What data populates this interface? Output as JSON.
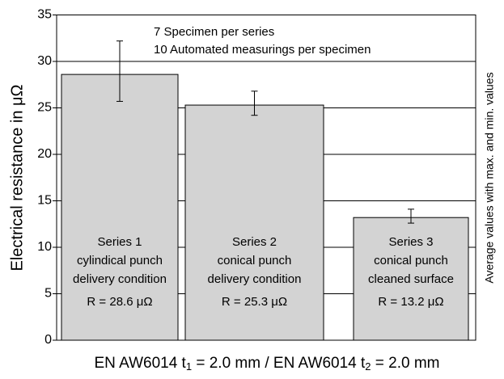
{
  "chart_data": {
    "type": "bar",
    "ylabel": "Electrical resistance in μΩ",
    "annotations": [
      "7 Specimen per series",
      "10 Automated measurings per specimen"
    ],
    "side_note": "Average values with max. and min. values",
    "xlabel_parts": [
      "EN AW6014 t",
      "1",
      " = 2.0 mm / EN AW6014 t",
      "2",
      " = 2.0 mm"
    ],
    "categories": [
      "Series 1",
      "Series 2",
      "Series 3"
    ],
    "descriptions": [
      [
        "cylindical punch",
        "delivery condition"
      ],
      [
        "conical punch",
        "delivery condition"
      ],
      [
        "conical punch",
        "cleaned surface"
      ]
    ],
    "values": [
      28.6,
      25.3,
      13.2
    ],
    "value_labels": [
      "R = 28.6 μΩ",
      "R = 25.3 μΩ",
      "R = 13.2 μΩ"
    ],
    "max": [
      32.2,
      26.8,
      14.1
    ],
    "min": [
      25.7,
      24.2,
      12.6
    ],
    "color": "#d3d3d3",
    "ylim": [
      0,
      35
    ],
    "yticks": [
      0,
      5,
      10,
      15,
      20,
      25,
      30,
      35
    ],
    "grid": true
  }
}
